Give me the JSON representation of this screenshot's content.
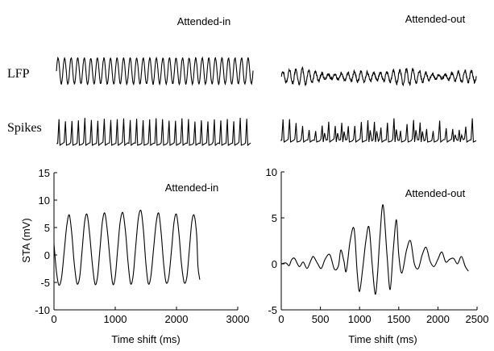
{
  "chart_data": [
    {
      "type": "line",
      "panel": "traces",
      "column_titles": [
        "Attended-in",
        "Attended-out"
      ],
      "row_labels": [
        "LFP",
        "Spikes"
      ],
      "traces": [
        {
          "row": "LFP",
          "column": "Attended-in",
          "cycles": 30,
          "pattern": "regular large-amplitude oscillation"
        },
        {
          "row": "LFP",
          "column": "Attended-out",
          "cycles": 30,
          "pattern": "irregular smaller-amplitude oscillation"
        },
        {
          "row": "Spikes",
          "column": "Attended-in",
          "cycles": 30,
          "pattern": "dense regular spikes"
        },
        {
          "row": "Spikes",
          "column": "Attended-out",
          "cycles": 30,
          "pattern": "sparser irregular spikes"
        }
      ]
    },
    {
      "type": "line",
      "annotation": "Attended-in",
      "xlabel": "Time shift (ms)",
      "ylabel": "STA (mV)",
      "xlim": [
        0,
        3000
      ],
      "ylim": [
        -10,
        15
      ],
      "xticks": [
        0,
        1000,
        2000,
        3000
      ],
      "yticks": [
        -10,
        -5,
        0,
        5,
        10,
        15
      ],
      "series": [
        {
          "period_ms": 250,
          "x": [
            0,
            40,
            80,
            125,
            170,
            210,
            250,
            290,
            330,
            375,
            420,
            460,
            500,
            540,
            580,
            625,
            670,
            710,
            750,
            790,
            830,
            875,
            920,
            960,
            1000,
            1040,
            1080,
            1125,
            1170,
            1210,
            1250,
            1290,
            1330,
            1375,
            1420,
            1460,
            1500,
            1540,
            1580,
            1625,
            1670,
            1710,
            1750,
            1790,
            1830,
            1875,
            1920,
            1960,
            2000,
            2040,
            2080,
            2125,
            2170,
            2210,
            2250,
            2290,
            2330,
            2350,
            2380
          ],
          "y": [
            2,
            -3,
            -5.5,
            -4,
            1,
            5.5,
            7.3,
            4,
            -1.5,
            -5.2,
            -4,
            1,
            6,
            7.4,
            4,
            -1.5,
            -5.3,
            -4,
            1,
            6,
            7.6,
            4,
            -1.5,
            -5.3,
            -4,
            1,
            6,
            7.7,
            4,
            -1.5,
            -5.2,
            -4,
            1,
            6.5,
            8.1,
            4.5,
            -1.5,
            -5.2,
            -4,
            1,
            6,
            7.6,
            4,
            -1.5,
            -5,
            -4,
            1,
            6,
            7.4,
            4,
            -1.5,
            -5,
            -4,
            1,
            6,
            7.2,
            3.5,
            -2,
            -4.5
          ]
        }
      ]
    },
    {
      "type": "line",
      "annotation": "Attended-out",
      "xlabel": "Time shift (ms)",
      "ylabel": "",
      "xlim": [
        0,
        2500
      ],
      "ylim": [
        -5,
        10
      ],
      "xticks": [
        0,
        500,
        1000,
        1500,
        2000,
        2500
      ],
      "yticks": [
        -5,
        0,
        5,
        10
      ],
      "series": [
        {
          "x": [
            0,
            60,
            100,
            130,
            170,
            230,
            280,
            330,
            380,
            410,
            460,
            510,
            560,
            620,
            680,
            730,
            760,
            800,
            830,
            880,
            930,
            970,
            1000,
            1040,
            1080,
            1120,
            1160,
            1200,
            1230,
            1260,
            1300,
            1350,
            1390,
            1430,
            1470,
            1500,
            1540,
            1600,
            1650,
            1700,
            1750,
            1800,
            1850,
            1900,
            1950,
            2000,
            2050,
            2100,
            2150,
            2200,
            2250,
            2300,
            2350,
            2390
          ],
          "y": [
            0,
            0.1,
            -0.2,
            0.4,
            0.6,
            -0.3,
            0.2,
            -0.5,
            0.4,
            0.8,
            0.1,
            -0.5,
            0.5,
            1.0,
            -0.6,
            -0.2,
            1.5,
            0.3,
            -0.8,
            2.5,
            3.8,
            -1.0,
            -3.0,
            -0.5,
            2.5,
            4.0,
            0.0,
            -3.3,
            -1.0,
            3.0,
            6.4,
            1.0,
            -2.8,
            1.5,
            4.8,
            1.0,
            -1.0,
            1.5,
            2.5,
            0.0,
            -0.5,
            1.0,
            1.8,
            0.3,
            -0.3,
            0.5,
            1.3,
            0.2,
            0.5,
            0.6,
            0.0,
            0.8,
            -0.3,
            -0.8
          ]
        }
      ]
    }
  ]
}
